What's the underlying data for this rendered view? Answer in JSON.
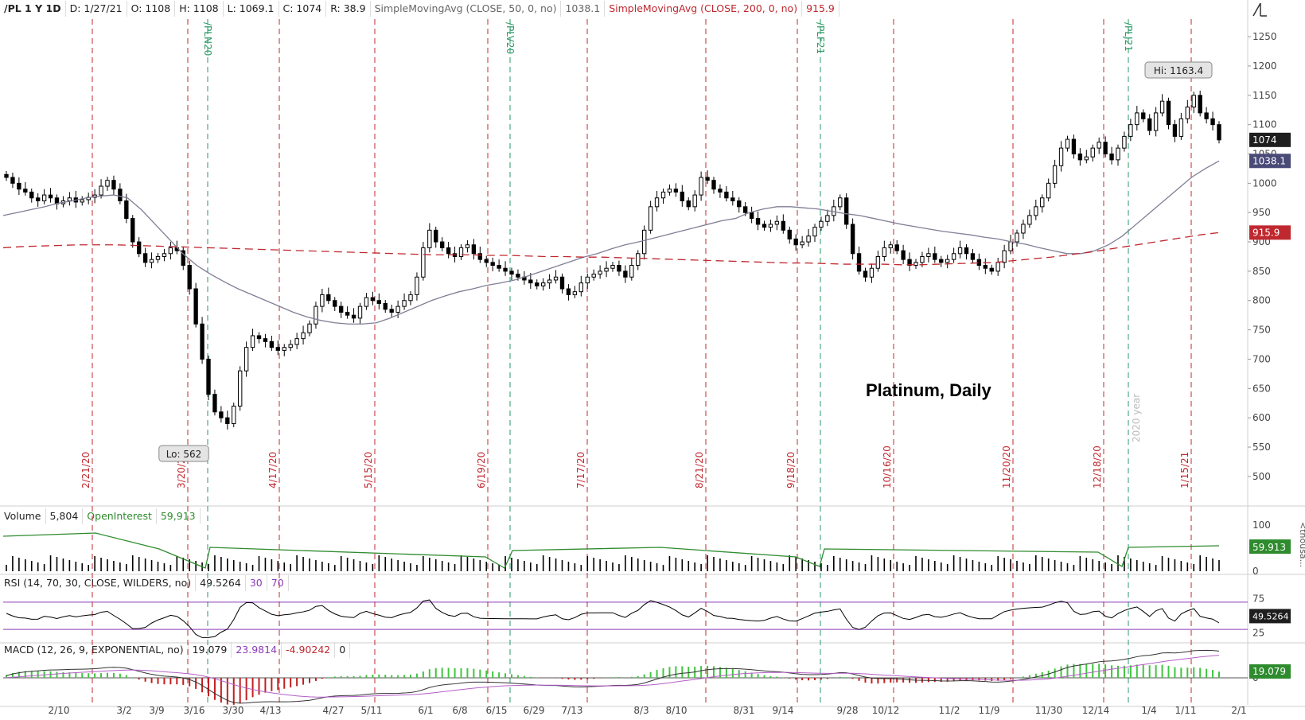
{
  "header": {
    "symbol": "/PL 1 Y 1D",
    "date": "D: 1/27/21",
    "open": "O: 1108",
    "high": "H: 1108",
    "low": "L: 1069.1",
    "close": "C: 1074",
    "range": "R: 38.9",
    "sma50_label": "SimpleMovingAvg (CLOSE, 50, 0, no)",
    "sma50_value": "1038.1",
    "sma200_label": "SimpleMovingAvg (CLOSE, 200, 0, no)",
    "sma200_value": "915.9"
  },
  "volume_header": {
    "label": "Volume",
    "volume": "5,804",
    "oi_label": "OpenInterest",
    "oi_value": "59,913"
  },
  "rsi_header": {
    "label": "RSI (14, 70, 30, CLOSE, WILDERS, no)",
    "value": "49.5264",
    "lo": "30",
    "hi": "70"
  },
  "macd_header": {
    "label": "MACD (12, 26, 9, EXPONENTIAL, no)",
    "value": "19.079",
    "avg": "23.9814",
    "diff": "-4.90242",
    "zero": "0"
  },
  "chart_title": "Platinum, Daily",
  "icons": {
    "corner": "tools-icon"
  },
  "colors": {
    "up": "#ffffff",
    "down": "#000000",
    "sma50": "#7f7f96",
    "sma200": "#c0282f",
    "oi": "#2e8b2e",
    "rsi_band": "#8a3ab9",
    "expiry_red": "#c0282f",
    "expiry_green": "#2a9a66",
    "macd_up": "#3fc53f",
    "macd_down": "#c41e1e"
  },
  "chart_data": [
    {
      "type": "candlestick",
      "title": "Platinum, Daily",
      "x_ticks": [
        "2/10",
        "3/2",
        "3/9",
        "3/16",
        "3/30",
        "4/13",
        "4/27",
        "5/11",
        "6/1",
        "6/8",
        "6/15",
        "6/29",
        "7/13",
        "8/3",
        "8/10",
        "8/31",
        "9/14",
        "9/28",
        "10/12",
        "11/2",
        "11/9",
        "11/30",
        "12/14",
        "1/4",
        "1/11",
        "2/1"
      ],
      "y_ticks": [
        500,
        550,
        600,
        650,
        700,
        750,
        800,
        850,
        900,
        950,
        1000,
        1050,
        1100,
        1150,
        1200,
        1250
      ],
      "ylim": [
        455,
        1280
      ],
      "closes": [
        1010,
        1000,
        990,
        985,
        975,
        970,
        980,
        975,
        965,
        970,
        975,
        968,
        972,
        976,
        980,
        995,
        1005,
        990,
        970,
        940,
        900,
        880,
        865,
        870,
        875,
        880,
        890,
        885,
        860,
        820,
        760,
        700,
        640,
        610,
        600,
        590,
        620,
        680,
        720,
        740,
        735,
        730,
        720,
        715,
        720,
        725,
        735,
        745,
        760,
        790,
        810,
        800,
        790,
        780,
        775,
        770,
        790,
        805,
        800,
        795,
        785,
        780,
        790,
        800,
        810,
        840,
        890,
        920,
        900,
        890,
        880,
        875,
        890,
        895,
        880,
        870,
        865,
        860,
        855,
        850,
        845,
        840,
        835,
        830,
        825,
        830,
        835,
        840,
        820,
        810,
        815,
        830,
        840,
        845,
        850,
        855,
        860,
        850,
        840,
        860,
        880,
        920,
        960,
        975,
        985,
        990,
        985,
        970,
        960,
        980,
        1010,
        1005,
        990,
        985,
        975,
        970,
        960,
        950,
        940,
        930,
        925,
        930,
        935,
        920,
        905,
        895,
        900,
        910,
        925,
        935,
        945,
        960,
        975,
        930,
        880,
        850,
        840,
        855,
        875,
        890,
        895,
        885,
        870,
        860,
        865,
        875,
        880,
        870,
        865,
        870,
        880,
        890,
        880,
        870,
        860,
        855,
        850,
        865,
        885,
        900,
        915,
        930,
        945,
        960,
        975,
        1000,
        1030,
        1060,
        1075,
        1050,
        1040,
        1045,
        1060,
        1070,
        1050,
        1040,
        1060,
        1080,
        1100,
        1120,
        1110,
        1090,
        1120,
        1140,
        1100,
        1080,
        1110,
        1130,
        1150,
        1120,
        1110,
        1100,
        1074
      ],
      "opens_note": "",
      "sma50": [
        945,
        950,
        955,
        960,
        966,
        970,
        975,
        978,
        980,
        975,
        955,
        930,
        905,
        880,
        860,
        845,
        832,
        820,
        810,
        800,
        790,
        780,
        772,
        766,
        762,
        760,
        760,
        762,
        770,
        780,
        790,
        800,
        808,
        815,
        820,
        826,
        830,
        835,
        842,
        850,
        858,
        866,
        874,
        880,
        888,
        895,
        900,
        906,
        912,
        918,
        924,
        930,
        936,
        940,
        950,
        956,
        960,
        960,
        958,
        956,
        952,
        948,
        945,
        940,
        935,
        930,
        926,
        922,
        918,
        915,
        912,
        908,
        905,
        900,
        896,
        890,
        885,
        880,
        880,
        885,
        895,
        910,
        930,
        950,
        970,
        990,
        1010,
        1025,
        1038
      ],
      "sma200": [
        890,
        892,
        893,
        894,
        895,
        895,
        895,
        894,
        893,
        892,
        891,
        890,
        889,
        888,
        887,
        886,
        885,
        884,
        883,
        882,
        881,
        880,
        879,
        878,
        878,
        878,
        877,
        877,
        876,
        875,
        875,
        874,
        874,
        873,
        872,
        871,
        870,
        869,
        868,
        867,
        866,
        865,
        864,
        864,
        863,
        862,
        862,
        862,
        861,
        861,
        862,
        863,
        864,
        865,
        868,
        871,
        874,
        878,
        882,
        887,
        892,
        897,
        902,
        907,
        912,
        915.9
      ]
    },
    {
      "type": "bar",
      "title": "Volume",
      "ylim": [
        0,
        100
      ],
      "y_ticks": [
        0,
        100
      ],
      "open_interest_last": 59.913
    },
    {
      "type": "line",
      "title": "RSI (14, 70, 30, CLOSE, WILDERS, no)",
      "ylim": [
        15,
        85
      ],
      "y_ticks": [
        25,
        75
      ],
      "bands": [
        30,
        70
      ],
      "last": 49.5264
    },
    {
      "type": "bar",
      "title": "MACD (12, 26, 9, EXPONENTIAL, no)",
      "y_ticks": [
        0
      ],
      "last": 19.079
    }
  ],
  "expiry_markers": [
    {
      "label": "2/21/20",
      "color": "red"
    },
    {
      "label": "3/20/20",
      "color": "red"
    },
    {
      "label": "/PLN20",
      "color": "green"
    },
    {
      "label": "4/17/20",
      "color": "red"
    },
    {
      "label": "5/15/20",
      "color": "red"
    },
    {
      "label": "6/19/20",
      "color": "red"
    },
    {
      "label": "/PLV20",
      "color": "green"
    },
    {
      "label": "7/17/20",
      "color": "red"
    },
    {
      "label": "8/21/20",
      "color": "red"
    },
    {
      "label": "9/18/20",
      "color": "red"
    },
    {
      "label": "/PLF21",
      "color": "green"
    },
    {
      "label": "10/16/20",
      "color": "red"
    },
    {
      "label": "11/20/20",
      "color": "red"
    },
    {
      "label": "12/18/20",
      "color": "red"
    },
    {
      "label": "/PLJ21",
      "color": "green"
    },
    {
      "label": "2020 year",
      "color": "gray"
    },
    {
      "label": "1/15/21",
      "color": "red"
    }
  ],
  "annotations": {
    "hi": "Hi: 1163.4",
    "lo": "Lo: 562"
  },
  "price_badges": {
    "last": "1074",
    "sma50": "1038.1",
    "sma200": "915.9"
  },
  "sub_badges": {
    "oi": "59.913",
    "rsi": "49.5264",
    "macd": "19.079",
    "vol_unit": "<thousa..."
  }
}
